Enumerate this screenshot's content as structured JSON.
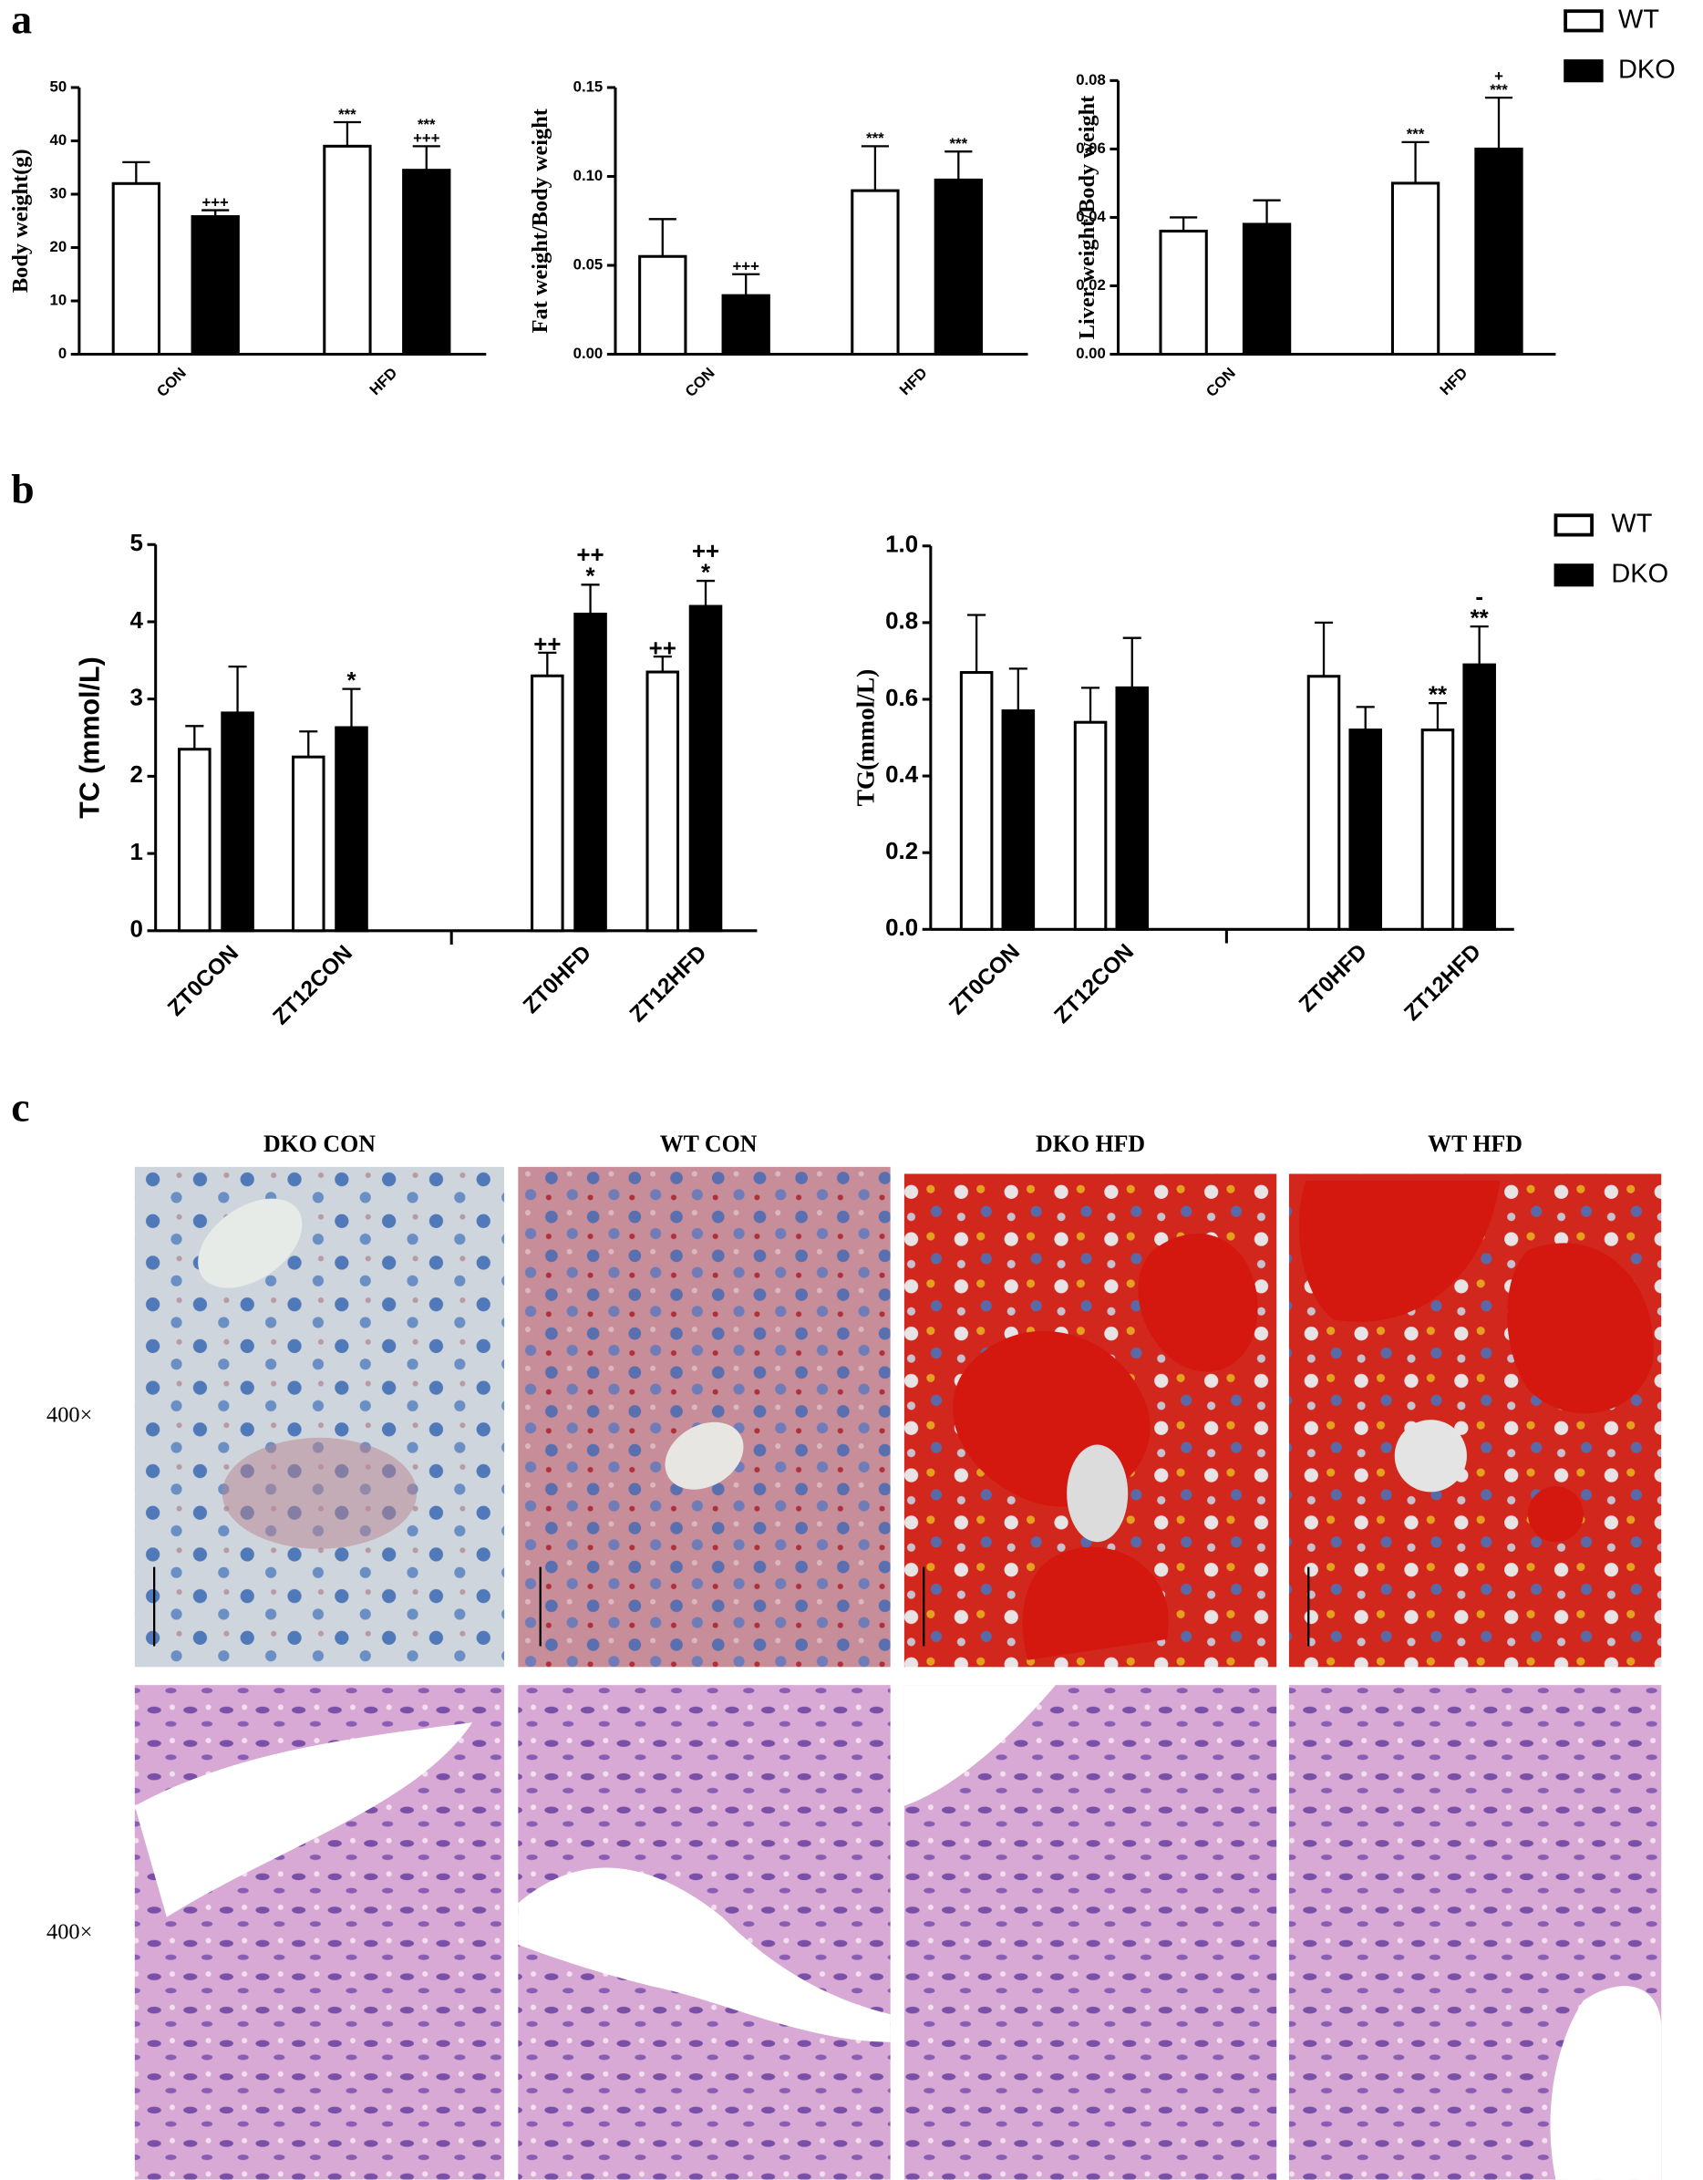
{
  "panel_labels": [
    "a",
    "b",
    "c"
  ],
  "chart_data": [
    {
      "type": "bar",
      "y_label": "Body weight(g)",
      "categories": [
        "CON",
        "HFD"
      ],
      "series": [
        {
          "name": "WT",
          "color": "#ffffff",
          "values": [
            32,
            39
          ],
          "errors": [
            4,
            4.5
          ],
          "annotations": [
            null,
            "***"
          ]
        },
        {
          "name": "DKO",
          "color": "#000000",
          "values": [
            25.8,
            34.5
          ],
          "errors": [
            1.2,
            4.5
          ],
          "annotations": [
            "+++",
            [
              "***",
              "+++"
            ]
          ]
        }
      ],
      "ylim": [
        0,
        50
      ],
      "yticks": [
        0,
        10,
        20,
        30,
        40,
        50
      ],
      "legend": false
    },
    {
      "type": "bar",
      "y_label": "Fat weight/Body weight",
      "categories": [
        "CON",
        "HFD"
      ],
      "series": [
        {
          "name": "WT",
          "color": "#ffffff",
          "values": [
            0.055,
            0.092
          ],
          "errors": [
            0.021,
            0.025
          ],
          "annotations": [
            null,
            "***"
          ]
        },
        {
          "name": "DKO",
          "color": "#000000",
          "values": [
            0.033,
            0.098
          ],
          "errors": [
            0.012,
            0.016
          ],
          "annotations": [
            "+++",
            "***"
          ]
        }
      ],
      "ylim": [
        0,
        0.15
      ],
      "yticks": [
        {
          "value": 0,
          "label": "0.00"
        },
        {
          "value": 0.05,
          "label": "0.05"
        },
        {
          "value": 0.1,
          "label": "0.10"
        },
        {
          "value": 0.15,
          "label": "0.15"
        }
      ],
      "legend": false
    },
    {
      "type": "bar",
      "y_label": "Liver weight/Body weight",
      "categories": [
        "CON",
        "HFD"
      ],
      "series": [
        {
          "name": "WT",
          "color": "#ffffff",
          "values": [
            0.036,
            0.05
          ],
          "errors": [
            0.004,
            0.012
          ],
          "annotations": [
            null,
            "***"
          ]
        },
        {
          "name": "DKO",
          "color": "#000000",
          "values": [
            0.038,
            0.06
          ],
          "errors": [
            0.007,
            0.015
          ],
          "annotations": [
            null,
            [
              "+",
              "***"
            ]
          ]
        }
      ],
      "ylim": [
        0,
        0.08
      ],
      "yticks": [
        {
          "value": 0,
          "label": "0.00"
        },
        {
          "value": 0.02,
          "label": "0.02"
        },
        {
          "value": 0.04,
          "label": "0.04"
        },
        {
          "value": 0.06,
          "label": "0.06"
        },
        {
          "value": 0.08,
          "label": "0.08"
        }
      ],
      "legend": true
    },
    {
      "type": "bar",
      "y_label": "TC (mmol/L)",
      "categories": [
        "ZT0CON",
        "ZT12CON",
        "ZT0HFD",
        "ZT12HFD"
      ],
      "series": [
        {
          "name": "WT",
          "color": "#ffffff",
          "values": [
            2.35,
            2.25,
            3.3,
            3.35
          ],
          "errors": [
            0.3,
            0.33,
            0.3,
            0.2
          ],
          "annotations": [
            null,
            null,
            "++",
            "++"
          ]
        },
        {
          "name": "DKO",
          "color": "#000000",
          "values": [
            2.82,
            2.63,
            4.1,
            4.2
          ],
          "errors": [
            0.6,
            0.5,
            0.38,
            0.33
          ],
          "annotations": [
            null,
            "*",
            [
              "++",
              "*"
            ],
            [
              "++",
              "*"
            ]
          ]
        }
      ],
      "ylim": [
        0,
        5
      ],
      "yticks": [
        0,
        1,
        2,
        3,
        4,
        5
      ],
      "legend": false
    },
    {
      "type": "bar",
      "y_label": "TG(mmol/L)",
      "categories": [
        "ZT0CON",
        "ZT12CON",
        "ZT0HFD",
        "ZT12HFD"
      ],
      "series": [
        {
          "name": "WT",
          "color": "#ffffff",
          "values": [
            0.67,
            0.54,
            0.66,
            0.52
          ],
          "errors": [
            0.15,
            0.09,
            0.14,
            0.07
          ],
          "annotations": [
            null,
            null,
            null,
            "**"
          ]
        },
        {
          "name": "DKO",
          "color": "#000000",
          "values": [
            0.57,
            0.63,
            0.52,
            0.69
          ],
          "errors": [
            0.11,
            0.13,
            0.06,
            0.1
          ],
          "annotations": [
            null,
            null,
            null,
            [
              "-",
              "**"
            ]
          ]
        }
      ],
      "ylim": [
        0,
        1.0
      ],
      "yticks": [
        {
          "value": 0,
          "label": "0.0"
        },
        {
          "value": 0.2,
          "label": "0.2"
        },
        {
          "value": 0.4,
          "label": "0.4"
        },
        {
          "value": 0.6,
          "label": "0.6"
        },
        {
          "value": 0.8,
          "label": "0.8"
        },
        {
          "value": 1.0,
          "label": "1.0"
        }
      ],
      "legend": true
    }
  ],
  "panel_c": {
    "columns": [
      "DKO CON",
      "WT CON",
      "DKO HFD",
      "WT HFD"
    ],
    "rows": [
      "400×",
      "400×"
    ]
  }
}
